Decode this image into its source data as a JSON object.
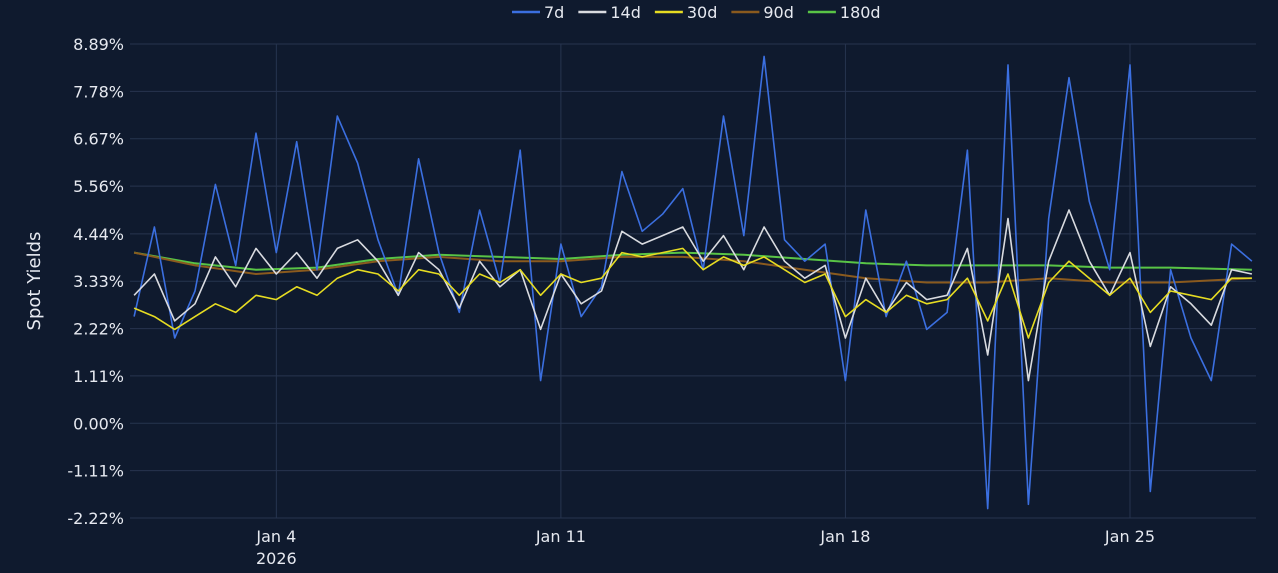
{
  "chart_data": {
    "type": "line",
    "title": "",
    "ylabel": "Spot Yields",
    "xlabel": "",
    "yticks": [
      "8.89%",
      "7.78%",
      "6.67%",
      "5.56%",
      "4.44%",
      "3.33%",
      "2.22%",
      "1.11%",
      "0.00%",
      "-1.11%",
      "-2.22%"
    ],
    "ytick_values": [
      8.89,
      7.78,
      6.67,
      5.56,
      4.44,
      3.33,
      2.22,
      1.11,
      0.0,
      -1.11,
      -2.22
    ],
    "ylim": [
      -2.22,
      8.89
    ],
    "xticks": [
      {
        "label": "Jan 4",
        "sublabel": "2026",
        "day": 4
      },
      {
        "label": "Jan 11",
        "sublabel": "",
        "day": 11
      },
      {
        "label": "Jan 18",
        "sublabel": "",
        "day": 18
      },
      {
        "label": "Jan 25",
        "sublabel": "",
        "day": 25
      }
    ],
    "xlim_days": [
      0.4,
      28.1
    ],
    "legend_position": "top-center",
    "grid": true,
    "series": [
      {
        "name": "7d",
        "color": "#3b6fe0",
        "x": [
          0.5,
          1,
          1.5,
          2,
          2.5,
          3,
          3.5,
          4,
          4.5,
          5,
          5.5,
          6,
          6.5,
          7,
          7.5,
          8,
          8.5,
          9,
          9.5,
          10,
          10.5,
          11,
          11.5,
          12,
          12.5,
          13,
          13.5,
          14,
          14.5,
          15,
          15.5,
          16,
          16.5,
          17,
          17.5,
          18,
          18.5,
          19,
          19.5,
          20,
          20.5,
          21,
          21.5,
          22,
          22.5,
          23,
          23.5,
          24,
          24.5,
          25,
          25.5,
          26,
          26.5,
          27,
          27.5,
          28
        ],
        "y": [
          2.5,
          4.6,
          2.0,
          3.1,
          5.6,
          3.7,
          6.8,
          4.0,
          6.6,
          3.6,
          7.2,
          6.1,
          4.3,
          3.0,
          6.2,
          4.0,
          2.6,
          5.0,
          3.3,
          6.4,
          1.0,
          4.2,
          2.5,
          3.2,
          5.9,
          4.5,
          4.9,
          5.5,
          3.6,
          7.2,
          4.4,
          8.6,
          4.3,
          3.8,
          4.2,
          1.0,
          5.0,
          2.5,
          3.8,
          2.2,
          2.6,
          6.4,
          -2.0,
          8.4,
          -1.9,
          4.8,
          8.1,
          5.2,
          3.6,
          8.4,
          -1.6,
          3.6,
          2.0,
          1.0,
          4.2,
          3.8
        ]
      },
      {
        "name": "14d",
        "color": "#d9dbe0",
        "x": [
          0.5,
          1,
          1.5,
          2,
          2.5,
          3,
          3.5,
          4,
          4.5,
          5,
          5.5,
          6,
          6.5,
          7,
          7.5,
          8,
          8.5,
          9,
          9.5,
          10,
          10.5,
          11,
          11.5,
          12,
          12.5,
          13,
          13.5,
          14,
          14.5,
          15,
          15.5,
          16,
          16.5,
          17,
          17.5,
          18,
          18.5,
          19,
          19.5,
          20,
          20.5,
          21,
          21.5,
          22,
          22.5,
          23,
          23.5,
          24,
          24.5,
          25,
          25.5,
          26,
          26.5,
          27,
          27.5,
          28
        ],
        "y": [
          3.0,
          3.5,
          2.4,
          2.8,
          3.9,
          3.2,
          4.1,
          3.5,
          4.0,
          3.4,
          4.1,
          4.3,
          3.8,
          3.0,
          4.0,
          3.6,
          2.7,
          3.8,
          3.2,
          3.6,
          2.2,
          3.5,
          2.8,
          3.1,
          4.5,
          4.2,
          4.4,
          4.6,
          3.8,
          4.4,
          3.6,
          4.6,
          3.8,
          3.4,
          3.7,
          2.0,
          3.4,
          2.6,
          3.3,
          2.9,
          3.0,
          4.1,
          1.6,
          4.8,
          1.0,
          3.8,
          5.0,
          3.8,
          3.0,
          4.0,
          1.8,
          3.2,
          2.8,
          2.3,
          3.6,
          3.5
        ]
      },
      {
        "name": "30d",
        "color": "#e6dc22",
        "x": [
          0.5,
          1,
          1.5,
          2,
          2.5,
          3,
          3.5,
          4,
          4.5,
          5,
          5.5,
          6,
          6.5,
          7,
          7.5,
          8,
          8.5,
          9,
          9.5,
          10,
          10.5,
          11,
          11.5,
          12,
          12.5,
          13,
          13.5,
          14,
          14.5,
          15,
          15.5,
          16,
          16.5,
          17,
          17.5,
          18,
          18.5,
          19,
          19.5,
          20,
          20.5,
          21,
          21.5,
          22,
          22.5,
          23,
          23.5,
          24,
          24.5,
          25,
          25.5,
          26,
          26.5,
          27,
          27.5,
          28
        ],
        "y": [
          2.7,
          2.5,
          2.2,
          2.5,
          2.8,
          2.6,
          3.0,
          2.9,
          3.2,
          3.0,
          3.4,
          3.6,
          3.5,
          3.1,
          3.6,
          3.5,
          3.0,
          3.5,
          3.3,
          3.6,
          3.0,
          3.5,
          3.3,
          3.4,
          4.0,
          3.9,
          4.0,
          4.1,
          3.6,
          3.9,
          3.7,
          3.9,
          3.6,
          3.3,
          3.5,
          2.5,
          2.9,
          2.6,
          3.0,
          2.8,
          2.9,
          3.4,
          2.4,
          3.5,
          2.0,
          3.3,
          3.8,
          3.4,
          3.0,
          3.4,
          2.6,
          3.1,
          3.0,
          2.9,
          3.4,
          3.4
        ]
      },
      {
        "name": "90d",
        "color": "#8a5a1e",
        "x": [
          0.5,
          2,
          3.5,
          5,
          6.5,
          8,
          9.5,
          11,
          12.5,
          14,
          15.5,
          17,
          18.5,
          20,
          21.5,
          23,
          24.5,
          26,
          28
        ],
        "y": [
          4.0,
          3.7,
          3.5,
          3.6,
          3.8,
          3.9,
          3.8,
          3.8,
          3.9,
          3.9,
          3.8,
          3.6,
          3.4,
          3.3,
          3.3,
          3.4,
          3.3,
          3.3,
          3.4
        ]
      },
      {
        "name": "180d",
        "color": "#59c446",
        "x": [
          0.5,
          2,
          3.5,
          5,
          6.5,
          8,
          9.5,
          11,
          12.5,
          14,
          15.5,
          17,
          18.5,
          20,
          21.5,
          23,
          24.5,
          26,
          28
        ],
        "y": [
          4.0,
          3.75,
          3.6,
          3.65,
          3.85,
          3.95,
          3.9,
          3.85,
          3.95,
          4.0,
          3.95,
          3.85,
          3.75,
          3.7,
          3.7,
          3.7,
          3.65,
          3.65,
          3.6
        ]
      }
    ]
  }
}
